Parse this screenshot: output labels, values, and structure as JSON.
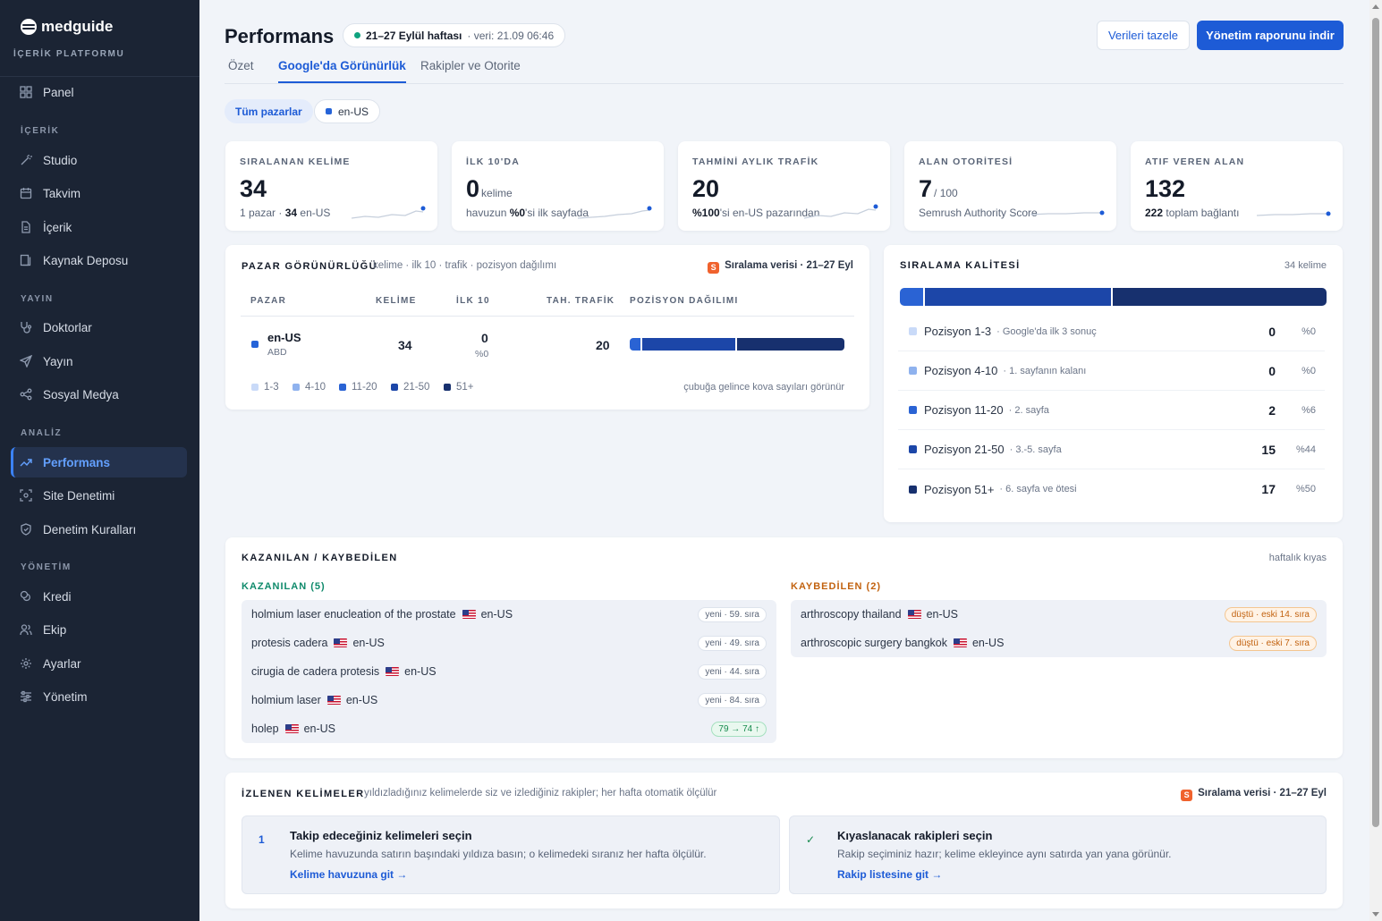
{
  "brand": {
    "name": "medguide",
    "subtitle": "İÇERİK PLATFORMU"
  },
  "sidebar": {
    "sections": [
      "İÇERİK",
      "YAYIN",
      "ANALİZ",
      "YÖNETİM"
    ],
    "items": [
      {
        "label": "Panel",
        "icon": "grid-icon"
      },
      {
        "label": "Studio",
        "icon": "magic-wand-icon"
      },
      {
        "label": "Takvim",
        "icon": "calendar-icon"
      },
      {
        "label": "İçerik",
        "icon": "document-icon"
      },
      {
        "label": "Kaynak Deposu",
        "icon": "library-icon"
      },
      {
        "label": "Doktorlar",
        "icon": "stethoscope-icon"
      },
      {
        "label": "Yayın",
        "icon": "send-icon"
      },
      {
        "label": "Sosyal Medya",
        "icon": "share-icon"
      },
      {
        "label": "Performans",
        "icon": "trend-icon",
        "active": true
      },
      {
        "label": "Site Denetimi",
        "icon": "scan-icon"
      },
      {
        "label": "Denetim Kuralları",
        "icon": "shield-icon"
      },
      {
        "label": "Kredi",
        "icon": "coins-icon"
      },
      {
        "label": "Ekip",
        "icon": "users-icon"
      },
      {
        "label": "Ayarlar",
        "icon": "gear-icon"
      },
      {
        "label": "Yönetim",
        "icon": "sliders-icon"
      }
    ]
  },
  "header": {
    "title": "Performans",
    "week": "21–27 Eylül haftası",
    "data_time": "· veri: 21.09 06:46",
    "refresh_label": "Verileri tazele",
    "report_label": "Yönetim raporunu indir"
  },
  "tabs": [
    "Özet",
    "Google'da Görünürlük",
    "Rakipler ve Otorite"
  ],
  "filters": {
    "all": "Tüm pazarlar",
    "market": "en-US"
  },
  "kpis": [
    {
      "label": "SIRALANAN KELİME",
      "value": "34",
      "unit": "",
      "sub_pre": "1 pazar · ",
      "sub_bold": "34",
      "sub_post": " en-US"
    },
    {
      "label": "İLK 10'DA",
      "value": "0",
      "unit": "kelime",
      "sub_pre": "havuzun ",
      "sub_bold": "%0",
      "sub_post": "'si ilk sayfada"
    },
    {
      "label": "TAHMİNİ AYLIK TRAFİK",
      "value": "20",
      "unit": "",
      "sub_pre": "",
      "sub_bold": "%100",
      "sub_post": "'si en-US pazarından"
    },
    {
      "label": "ALAN OTORİTESİ",
      "value": "7",
      "unit": "/ 100",
      "sub_pre": "Semrush Authority Score",
      "sub_bold": "",
      "sub_post": ""
    },
    {
      "label": "ATIF VEREN ALAN",
      "value": "132",
      "unit": "",
      "sub_pre": "",
      "sub_bold": "222",
      "sub_post": " toplam bağlantı"
    }
  ],
  "market": {
    "title": "PAZAR GÖRÜNÜRLÜĞÜ",
    "subtitle": "kelime · ilk 10 · trafik · pozisyon dağılımı",
    "source": "Sıralama verisi · 21–27 Eyl",
    "columns": [
      "PAZAR",
      "KELİME",
      "İLK 10",
      "TAH. TRAFİK",
      "POZİSYON DAĞILIMI"
    ],
    "row": {
      "market": "en-US",
      "country": "ABD",
      "keywords": "34",
      "top10": "0",
      "top10_pct": "%0",
      "traffic": "20",
      "distribution": [
        0,
        0,
        2,
        15,
        17
      ]
    },
    "legend": [
      "1-3",
      "4-10",
      "11-20",
      "21-50",
      "51+"
    ],
    "hint": "çubuğa gelince kova sayıları görünür"
  },
  "quality": {
    "title": "SIRALAMA KALİTESİ",
    "count": "34 kelime",
    "rows": [
      {
        "name": "Pozisyon 1-3",
        "desc": "· Google'da ilk 3 sonuç",
        "count": "0",
        "pct": "%0",
        "value": 0,
        "color": "#c9daf8"
      },
      {
        "name": "Pozisyon 4-10",
        "desc": "· 1. sayfanın kalanı",
        "count": "0",
        "pct": "%0",
        "value": 0,
        "color": "#8fb2ee"
      },
      {
        "name": "Pozisyon 11-20",
        "desc": "· 2. sayfa",
        "count": "2",
        "pct": "%6",
        "value": 2,
        "color": "#2a63d4"
      },
      {
        "name": "Pozisyon 21-50",
        "desc": "· 3.-5. sayfa",
        "count": "15",
        "pct": "%44",
        "value": 15,
        "color": "#1c46a8"
      },
      {
        "name": "Pozisyon 51+",
        "desc": "· 6. sayfa ve ötesi",
        "count": "17",
        "pct": "%50",
        "value": 17,
        "color": "#17306e"
      }
    ]
  },
  "gainloss": {
    "title": "KAZANILAN / KAYBEDİLEN",
    "note": "haftalık kıyas",
    "gained_title": "KAZANILAN (5)",
    "lost_title": "KAYBEDİLEN (2)",
    "gained": [
      {
        "kw": "holmium laser enucleation of the prostate",
        "market": "en-US",
        "tag": "yeni · 59. sıra"
      },
      {
        "kw": "protesis cadera",
        "market": "en-US",
        "tag": "yeni · 49. sıra"
      },
      {
        "kw": "cirugia de cadera protesis",
        "market": "en-US",
        "tag": "yeni · 44. sıra"
      },
      {
        "kw": "holmium laser",
        "market": "en-US",
        "tag": "yeni · 84. sıra"
      },
      {
        "kw": "holep",
        "market": "en-US",
        "tag": "79 → 74 ↑"
      }
    ],
    "lost": [
      {
        "kw": "arthroscopy thailand",
        "market": "en-US",
        "tag": "düştü · eski 14. sıra"
      },
      {
        "kw": "arthroscopic surgery bangkok",
        "market": "en-US",
        "tag": "düştü · eski 7. sıra"
      }
    ]
  },
  "tracked": {
    "title": "İZLENEN KELİMELER",
    "subtitle": "yıldızladığınız kelimelerde siz ve izlediğiniz rakipler; her hafta otomatik ölçülür",
    "source": "Sıralama verisi · 21–27 Eyl",
    "steps": [
      {
        "mark": "1",
        "title": "Takip edeceğiniz kelimeleri seçin",
        "desc": "Kelime havuzunda satırın başındaki yıldıza basın; o kelimedeki sıranız her hafta ölçülür.",
        "link": "Kelime havuzuna git →"
      },
      {
        "mark": "✓",
        "title": "Kıyaslanacak rakipleri seçin",
        "desc": "Rakip seçiminiz hazır; kelime ekleyince aynı satırda yan yana görünür.",
        "link": "Rakip listesine git →"
      }
    ]
  }
}
